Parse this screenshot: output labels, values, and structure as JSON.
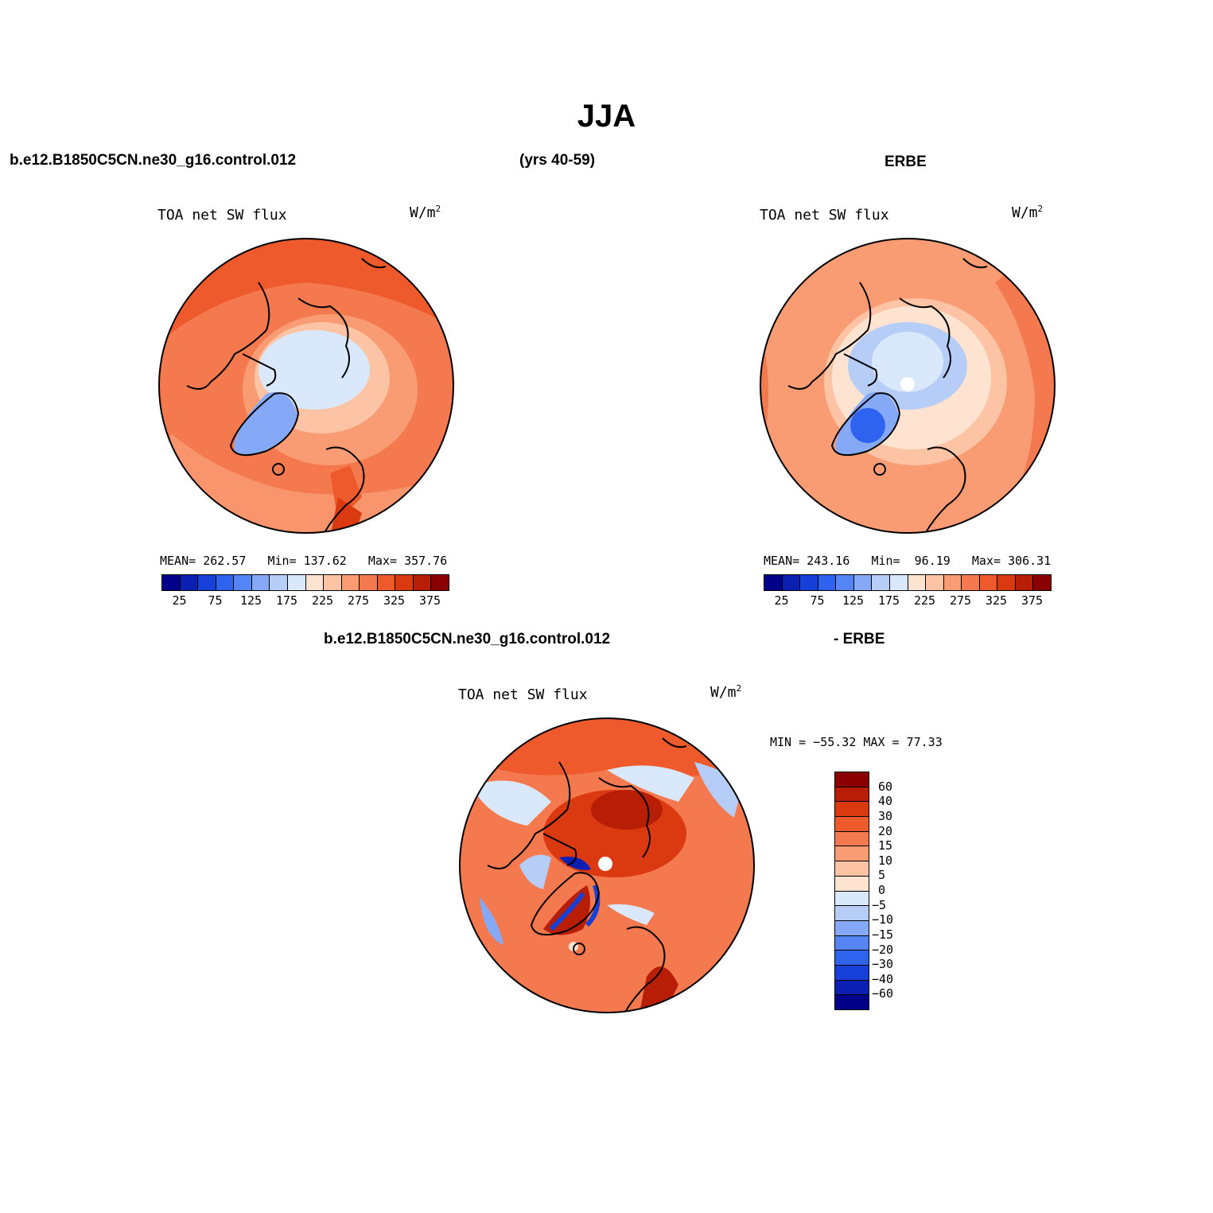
{
  "figure": {
    "title": "JJA",
    "case_name": "b.e12.B1850C5CN.ne30_g16.control.012",
    "years": "(yrs 40-59)",
    "obs_name": "ERBE",
    "diff_case_name": "b.e12.B1850C5CN.ne30_g16.control.012",
    "diff_obs_name": "- ERBE"
  },
  "panels": [
    {
      "id": "model",
      "variable": "TOA net SW flux",
      "units": "W/m",
      "units_sup": "2",
      "stats": {
        "mean_label": "MEAN=",
        "mean": "262.57",
        "min_label": "Min=",
        "min": "137.62",
        "max_label": "Max=",
        "max": "357.76"
      }
    },
    {
      "id": "obs",
      "variable": "TOA net SW flux",
      "units": "W/m",
      "units_sup": "2",
      "stats": {
        "mean_label": "MEAN=",
        "mean": "243.16",
        "min_label": "Min=",
        "min": "96.19",
        "max_label": "Max=",
        "max": "306.31"
      }
    },
    {
      "id": "diff",
      "variable": "TOA net SW flux",
      "units": "W/m",
      "units_sup": "2",
      "minmax": "MIN = −55.32 MAX =  77.33"
    }
  ],
  "colorbar_abs": {
    "colors": [
      "#00008b",
      "#0b1fb3",
      "#1740d8",
      "#2e63f0",
      "#5585f5",
      "#86a9f7",
      "#b6cdf7",
      "#d9e8fa",
      "#fde3d0",
      "#fcc4a4",
      "#f99c74",
      "#f4794e",
      "#ef5a2d",
      "#db3a10",
      "#b81d05",
      "#8b0000"
    ],
    "labels": [
      "25",
      "75",
      "125",
      "175",
      "225",
      "275",
      "325",
      "375"
    ]
  },
  "colorbar_diff": {
    "colors": [
      "#8b0000",
      "#b81d05",
      "#db3a10",
      "#ef5a2d",
      "#f4794e",
      "#f99c74",
      "#fcc4a4",
      "#fde3d0",
      "#d9e8fa",
      "#b6cdf7",
      "#86a9f7",
      "#5585f5",
      "#2e63f0",
      "#1740d8",
      "#0b1fb3",
      "#00008b"
    ],
    "labels": [
      "60",
      "40",
      "30",
      "20",
      "15",
      "10",
      "5",
      "0",
      "−5",
      "−10",
      "−15",
      "−20",
      "−30",
      "−40",
      "−60"
    ]
  }
}
